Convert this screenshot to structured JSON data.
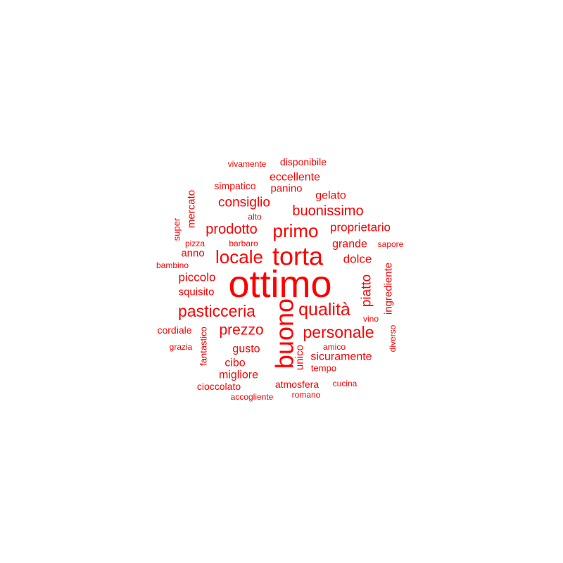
{
  "color": "#ff0000",
  "words": [
    {
      "text": "ottimo"
    },
    {
      "text": "buono"
    },
    {
      "text": "torta"
    },
    {
      "text": "locale"
    },
    {
      "text": "primo"
    },
    {
      "text": "qualità"
    },
    {
      "text": "personale"
    },
    {
      "text": "pasticceria"
    },
    {
      "text": "prezzo"
    },
    {
      "text": "buonissimo"
    },
    {
      "text": "prodotto"
    },
    {
      "text": "consiglio"
    },
    {
      "text": "piatto"
    },
    {
      "text": "dolce"
    },
    {
      "text": "proprietario"
    },
    {
      "text": "piccolo"
    },
    {
      "text": "grande"
    },
    {
      "text": "gelato"
    },
    {
      "text": "eccellente"
    },
    {
      "text": "sicuramente"
    },
    {
      "text": "gusto"
    },
    {
      "text": "ingrediente"
    },
    {
      "text": "migliore"
    },
    {
      "text": "squisito"
    },
    {
      "text": "cibo"
    },
    {
      "text": "mercato"
    },
    {
      "text": "anno"
    },
    {
      "text": "panino"
    },
    {
      "text": "unico"
    },
    {
      "text": "simpatico"
    },
    {
      "text": "disponibile"
    },
    {
      "text": "cioccolato"
    },
    {
      "text": "atmosfera"
    },
    {
      "text": "cordiale"
    },
    {
      "text": "vivamente"
    },
    {
      "text": "tempo"
    },
    {
      "text": "fantastico"
    },
    {
      "text": "super"
    },
    {
      "text": "sapore"
    },
    {
      "text": "barbaro"
    },
    {
      "text": "pizza"
    },
    {
      "text": "bambino"
    },
    {
      "text": "cucina"
    },
    {
      "text": "amico"
    },
    {
      "text": "vino"
    },
    {
      "text": "grazia"
    },
    {
      "text": "accogliente"
    },
    {
      "text": "romano"
    },
    {
      "text": "alto"
    },
    {
      "text": "diverso"
    }
  ]
}
